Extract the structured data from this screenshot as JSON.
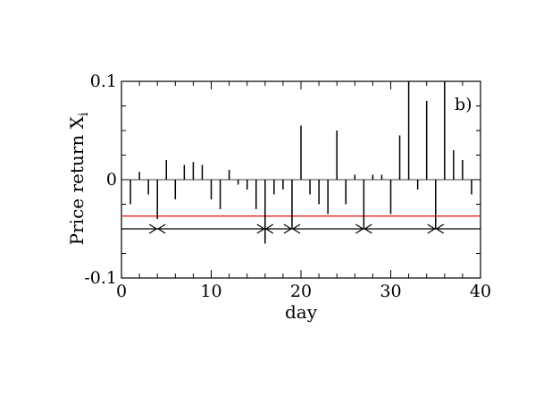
{
  "chart_data": {
    "type": "bar",
    "panel_label": "b)",
    "xlabel": "day",
    "ylabel": "Price return X",
    "ylabel_subscript": "i",
    "xlim": [
      0,
      40
    ],
    "ylim": [
      -0.1,
      0.1
    ],
    "x_ticks": [
      0,
      10,
      20,
      30,
      40
    ],
    "x_tick_labels": [
      "0",
      "10",
      "20",
      "30",
      "40"
    ],
    "y_ticks": [
      -0.1,
      0,
      0.1
    ],
    "y_tick_labels": [
      "-0.1",
      "0",
      "0.1"
    ],
    "grid": false,
    "series": [
      {
        "style": "vertical-bars-from-zero",
        "color": "#000000",
        "points": [
          {
            "x": 1,
            "y": -0.025
          },
          {
            "x": 2,
            "y": 0.008
          },
          {
            "x": 3,
            "y": -0.015
          },
          {
            "x": 4,
            "y": -0.04
          },
          {
            "x": 5,
            "y": 0.02
          },
          {
            "x": 6,
            "y": -0.02
          },
          {
            "x": 7,
            "y": 0.015
          },
          {
            "x": 8,
            "y": 0.018
          },
          {
            "x": 9,
            "y": 0.015
          },
          {
            "x": 10,
            "y": -0.02
          },
          {
            "x": 11,
            "y": -0.03
          },
          {
            "x": 12,
            "y": 0.01
          },
          {
            "x": 13,
            "y": -0.005
          },
          {
            "x": 14,
            "y": -0.01
          },
          {
            "x": 15,
            "y": -0.03
          },
          {
            "x": 16,
            "y": -0.065
          },
          {
            "x": 17,
            "y": -0.015
          },
          {
            "x": 18,
            "y": -0.01
          },
          {
            "x": 19,
            "y": -0.05
          },
          {
            "x": 20,
            "y": 0.055
          },
          {
            "x": 21,
            "y": -0.015
          },
          {
            "x": 22,
            "y": -0.025
          },
          {
            "x": 23,
            "y": -0.035
          },
          {
            "x": 24,
            "y": 0.05
          },
          {
            "x": 25,
            "y": -0.025
          },
          {
            "x": 26,
            "y": 0.005
          },
          {
            "x": 27,
            "y": -0.05
          },
          {
            "x": 28,
            "y": 0.005
          },
          {
            "x": 29,
            "y": 0.005
          },
          {
            "x": 30,
            "y": -0.035
          },
          {
            "x": 31,
            "y": 0.045
          },
          {
            "x": 32,
            "y": 0.1
          },
          {
            "x": 33,
            "y": -0.01
          },
          {
            "x": 34,
            "y": 0.08
          },
          {
            "x": 35,
            "y": -0.05
          },
          {
            "x": 36,
            "y": 0.1
          },
          {
            "x": 37,
            "y": 0.03
          },
          {
            "x": 38,
            "y": 0.02
          },
          {
            "x": 39,
            "y": -0.015
          }
        ]
      }
    ],
    "reference_lines": [
      {
        "y": -0.037,
        "color": "#e8201c"
      },
      {
        "y": -0.05,
        "color": "#000000"
      }
    ],
    "interval_arrows": {
      "y": -0.05,
      "boundaries": [
        4,
        16,
        19,
        27,
        35
      ]
    }
  }
}
